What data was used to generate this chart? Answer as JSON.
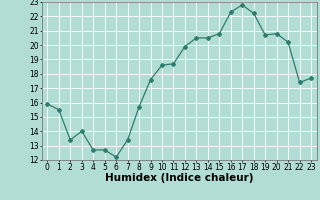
{
  "x": [
    0,
    1,
    2,
    3,
    4,
    5,
    6,
    7,
    8,
    9,
    10,
    11,
    12,
    13,
    14,
    15,
    16,
    17,
    18,
    19,
    20,
    21,
    22,
    23
  ],
  "y": [
    15.9,
    15.5,
    13.4,
    14.0,
    12.7,
    12.7,
    12.2,
    13.4,
    15.7,
    17.6,
    18.6,
    18.7,
    19.9,
    20.5,
    20.5,
    20.8,
    22.3,
    22.8,
    22.2,
    20.7,
    20.8,
    20.2,
    17.4,
    17.7
  ],
  "line_color": "#2e7d6e",
  "marker": "D",
  "marker_size": 2.0,
  "linewidth": 0.9,
  "xlabel": "Humidex (Indice chaleur)",
  "xlim": [
    -0.5,
    23.5
  ],
  "ylim": [
    12,
    23
  ],
  "yticks": [
    12,
    13,
    14,
    15,
    16,
    17,
    18,
    19,
    20,
    21,
    22,
    23
  ],
  "xticks": [
    0,
    1,
    2,
    3,
    4,
    5,
    6,
    7,
    8,
    9,
    10,
    11,
    12,
    13,
    14,
    15,
    16,
    17,
    18,
    19,
    20,
    21,
    22,
    23
  ],
  "bg_color": "#b2ddd4",
  "grid_color": "#ffffff",
  "tick_label_fontsize": 5.5,
  "xlabel_fontsize": 7.5
}
